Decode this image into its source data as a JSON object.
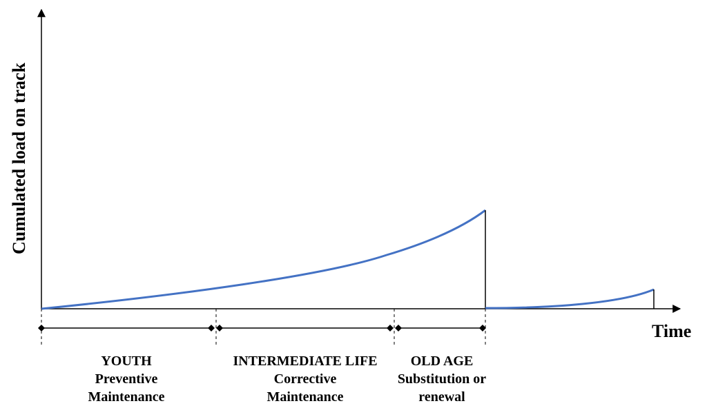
{
  "axes": {
    "y_label": "Cumulated load on track",
    "x_label": "Time"
  },
  "phases": [
    {
      "name": "YOUTH",
      "line1": "Preventive",
      "line2": "Maintenance"
    },
    {
      "name": "INTERMEDIATE LIFE",
      "line1": "Corrective",
      "line2": "Maintenance"
    },
    {
      "name": "OLD AGE",
      "line1": "Substitution or",
      "line2": "renewal"
    }
  ],
  "colors": {
    "curve": "#4472c4",
    "axis": "#000000"
  }
}
